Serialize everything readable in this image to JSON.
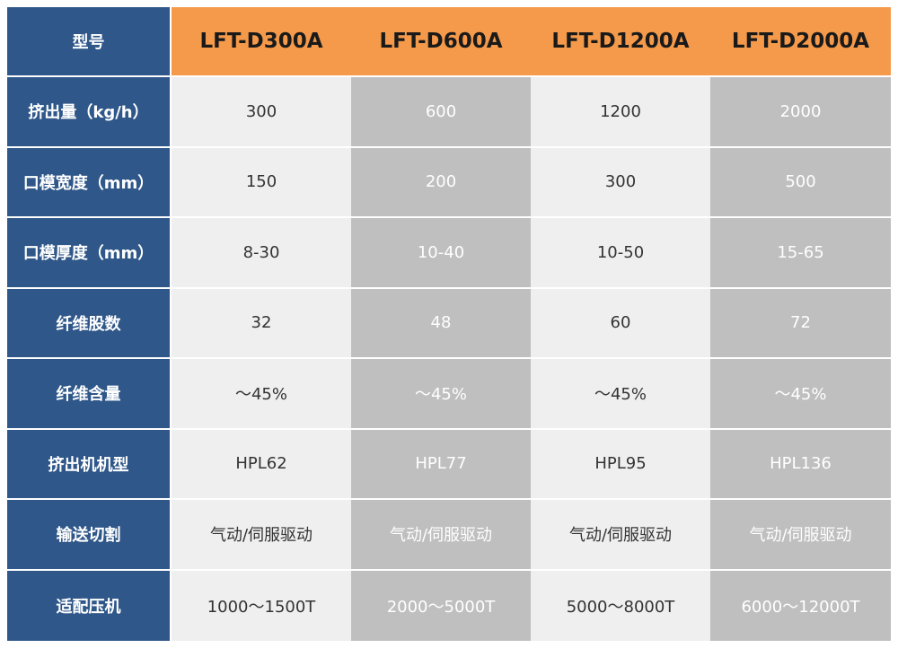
{
  "header": {
    "label": "型号",
    "models": [
      "LFT-D300A",
      "LFT-D600A",
      "LFT-D1200A",
      "LFT-D2000A"
    ]
  },
  "rows": [
    {
      "label": "挤出量（kg/h）",
      "values": [
        "300",
        "600",
        "1200",
        "2000"
      ]
    },
    {
      "label": "口模宽度（mm）",
      "values": [
        "150",
        "200",
        "300",
        "500"
      ]
    },
    {
      "label": "口模厚度（mm）",
      "values": [
        "8-30",
        "10-40",
        "10-50",
        "15-65"
      ]
    },
    {
      "label": "纤维股数",
      "values": [
        "32",
        "48",
        "60",
        "72"
      ]
    },
    {
      "label": "纤维含量",
      "values": [
        "～45%",
        "～45%",
        "～45%",
        "～45%"
      ]
    },
    {
      "label": "挤出机机型",
      "values": [
        "HPL62",
        "HPL77",
        "HPL95",
        "HPL136"
      ]
    },
    {
      "label": "输送切割",
      "values": [
        "气动/伺服驱动",
        "气动/伺服驱动",
        "气动/伺服驱动",
        "气动/伺服驱动"
      ]
    },
    {
      "label": "适配压机",
      "values": [
        "1000～1500T",
        "2000～5000T",
        "5000～8000T",
        "6000～12000T"
      ]
    }
  ],
  "colors": {
    "label_bg": "#2f5789",
    "header_bg": "#f49a4a",
    "light_col_bg": "#efefef",
    "dark_col_bg": "#bfbfbf"
  }
}
